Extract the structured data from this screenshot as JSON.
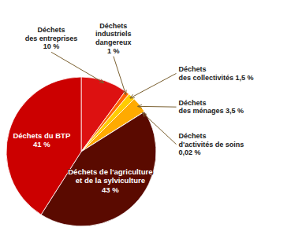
{
  "chart_data": {
    "type": "pie",
    "categories": [
      "Déchets\ndes entreprises\n10 %",
      "Déchets\nindustriels\ndangereux\n1 %",
      "Déchets\ndes collectivités 1,5 %",
      "Déchets\ndes ménages 3,5 %",
      "Déchets\nd'activités de soins\n0,02 %",
      "Déchets de l'agriculture\net de la sylviculture\n43 %",
      "Déchets du BTP\n41 %"
    ],
    "values": [
      10,
      1,
      1.5,
      3.5,
      0.02,
      43,
      41
    ],
    "colors": [
      "#dd1111",
      "#ff6600",
      "#ffcc00",
      "#ffaa00",
      "#3a0800",
      "#5a0a00",
      "#cc0000"
    ]
  }
}
